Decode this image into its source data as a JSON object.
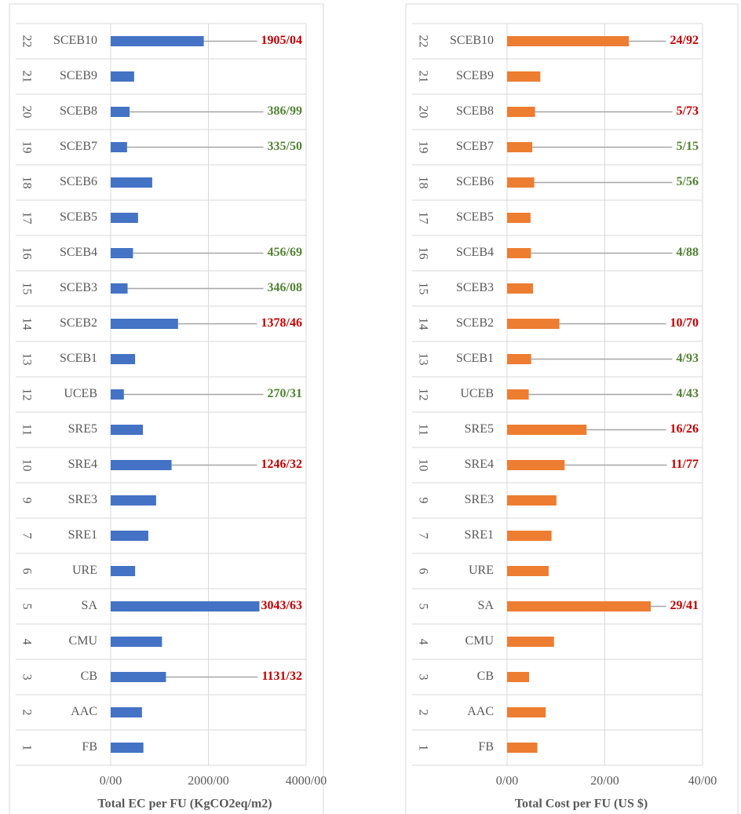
{
  "chart_data": [
    {
      "type": "bar",
      "orientation": "horizontal",
      "x_label": "Total EC per FU (KgCO2eq/m2)",
      "color": "#4472c4",
      "ids": [
        22,
        21,
        20,
        19,
        18,
        17,
        16,
        15,
        14,
        13,
        12,
        11,
        10,
        9,
        7,
        6,
        5,
        4,
        3,
        2,
        1
      ],
      "categories": [
        "SCEB10",
        "SCEB9",
        "SCEB8",
        "SCEB7",
        "SCEB6",
        "SCEB5",
        "SCEB4",
        "SCEB3",
        "SCEB2",
        "SCEB1",
        "UCEB",
        "SRE5",
        "SRE4",
        "SRE3",
        "SRE1",
        "URE",
        "SA",
        "CMU",
        "CB",
        "AAC",
        "FB"
      ],
      "values": [
        1905.04,
        480,
        386.99,
        335.5,
        850,
        560,
        456.69,
        346.08,
        1378.46,
        500,
        270.31,
        660,
        1246.32,
        930,
        770,
        500,
        3043.63,
        1050,
        1131.32,
        640,
        670
      ],
      "value_labels": [
        "1905/04",
        null,
        "386/99",
        "335/50",
        null,
        null,
        "456/69",
        "346/08",
        "1378/46",
        null,
        "270/31",
        null,
        "1246/32",
        null,
        null,
        null,
        "3043/63",
        null,
        "1131/32",
        null,
        null
      ],
      "value_label_colors": [
        "#c00000",
        null,
        "#548235",
        "#548235",
        null,
        null,
        "#548235",
        "#548235",
        "#c00000",
        null,
        "#548235",
        null,
        "#c00000",
        null,
        null,
        null,
        "#c00000",
        null,
        "#c00000",
        null,
        null
      ],
      "xlim": [
        0,
        4000
      ],
      "xticks": [
        {
          "value": 0,
          "label": "0/00"
        },
        {
          "value": 2000,
          "label": "2000/00"
        },
        {
          "value": 4000,
          "label": "4000/00"
        }
      ],
      "grid": true
    },
    {
      "type": "bar",
      "orientation": "horizontal",
      "x_label": "Total Cost per FU  (US $)",
      "color": "#ed7d31",
      "ids": [
        22,
        21,
        20,
        19,
        18,
        17,
        16,
        15,
        14,
        13,
        12,
        11,
        10,
        9,
        7,
        6,
        5,
        4,
        3,
        2,
        1
      ],
      "categories": [
        "SCEB10",
        "SCEB9",
        "SCEB8",
        "SCEB7",
        "SCEB6",
        "SCEB5",
        "SCEB4",
        "SCEB3",
        "SCEB2",
        "SCEB1",
        "UCEB",
        "SRE5",
        "SRE4",
        "SRE3",
        "SRE1",
        "URE",
        "SA",
        "CMU",
        "CB",
        "AAC",
        "FB"
      ],
      "values": [
        24.92,
        6.8,
        5.73,
        5.15,
        5.56,
        4.8,
        4.88,
        5.3,
        10.7,
        4.93,
        4.43,
        16.26,
        11.77,
        10.1,
        9.1,
        8.5,
        29.41,
        9.6,
        4.5,
        7.9,
        6.2
      ],
      "value_labels": [
        "24/92",
        null,
        "5/73",
        "5/15",
        "5/56",
        null,
        "4/88",
        null,
        "10/70",
        "4/93",
        "4/43",
        "16/26",
        "11/77",
        null,
        null,
        null,
        "29/41",
        null,
        null,
        null,
        null
      ],
      "value_label_colors": [
        "#c00000",
        null,
        "#c00000",
        "#548235",
        "#548235",
        null,
        "#548235",
        null,
        "#c00000",
        "#548235",
        "#548235",
        "#c00000",
        "#c00000",
        null,
        null,
        null,
        "#c00000",
        null,
        null,
        null,
        null
      ],
      "xlim": [
        0,
        40
      ],
      "xticks": [
        {
          "value": 0,
          "label": "0/00"
        },
        {
          "value": 20,
          "label": "20/00"
        },
        {
          "value": 40,
          "label": "40/00"
        }
      ],
      "grid": true
    }
  ]
}
